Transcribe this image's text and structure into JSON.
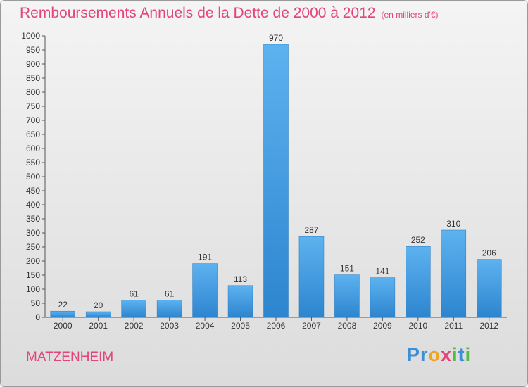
{
  "chart_data": {
    "type": "bar",
    "title": "Remboursements Annuels de la Dette de 2000 à 2012",
    "subtitle": "(en milliers d'€)",
    "categories": [
      "2000",
      "2001",
      "2002",
      "2003",
      "2004",
      "2005",
      "2006",
      "2007",
      "2008",
      "2009",
      "2010",
      "2011",
      "2012"
    ],
    "values": [
      22,
      20,
      61,
      61,
      191,
      113,
      970,
      287,
      151,
      141,
      252,
      310,
      206
    ],
    "ylim": [
      0,
      1000
    ],
    "ytick_step": 50,
    "grid": false,
    "bar_color": "#4ea6e6",
    "xlabel": "",
    "ylabel": ""
  },
  "footer": {
    "commune": "MATZENHEIM",
    "logo": "Proxiti"
  },
  "colors": {
    "title": "#e4447a",
    "bar": "#4ea6e6"
  }
}
